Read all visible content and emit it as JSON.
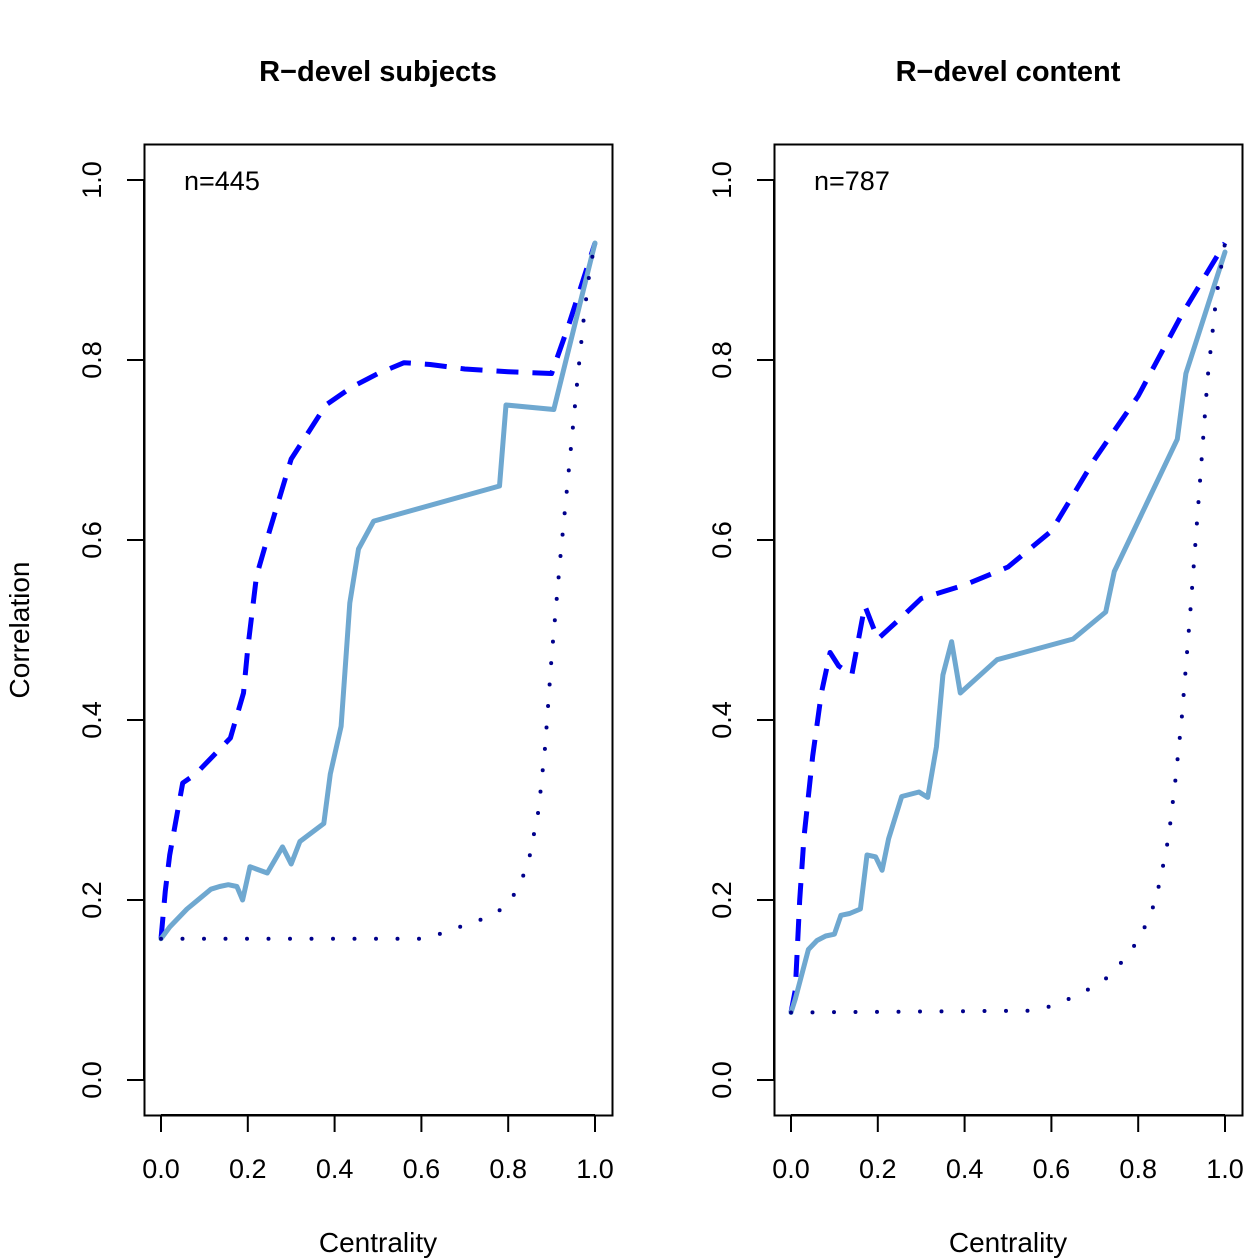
{
  "figure": {
    "ylabel": "Correlation"
  },
  "chart_data": [
    {
      "type": "line",
      "title": "R−devel subjects",
      "xlabel": "Centrality",
      "ylabel": "Correlation",
      "annotation": "n=445",
      "xlim": [
        0,
        1
      ],
      "ylim": [
        0,
        1
      ],
      "xticks": [
        "0.0",
        "0.2",
        "0.4",
        "0.6",
        "0.8",
        "1.0"
      ],
      "yticks": [
        "0.0",
        "0.2",
        "0.4",
        "0.6",
        "0.8",
        "1.0"
      ],
      "grid": false,
      "series": [
        {
          "style": "dashed",
          "color": "#0000ff",
          "x": [
            0.0,
            0.01,
            0.02,
            0.05,
            0.08,
            0.12,
            0.16,
            0.19,
            0.2,
            0.22,
            0.25,
            0.3,
            0.34,
            0.38,
            0.44,
            0.5,
            0.56,
            0.62,
            0.7,
            0.8,
            0.9,
            0.94,
            1.0
          ],
          "y": [
            0.157,
            0.21,
            0.25,
            0.33,
            0.34,
            0.36,
            0.38,
            0.43,
            0.48,
            0.56,
            0.61,
            0.69,
            0.72,
            0.75,
            0.77,
            0.785,
            0.797,
            0.795,
            0.79,
            0.787,
            0.785,
            0.84,
            0.93
          ]
        },
        {
          "style": "solid",
          "color": "#6fa8d0",
          "x": [
            0.0,
            0.02,
            0.06,
            0.08,
            0.115,
            0.135,
            0.155,
            0.175,
            0.188,
            0.205,
            0.245,
            0.28,
            0.3,
            0.32,
            0.375,
            0.39,
            0.415,
            0.435,
            0.455,
            0.49,
            0.78,
            0.795,
            0.905,
            1.0
          ],
          "y": [
            0.157,
            0.17,
            0.19,
            0.198,
            0.212,
            0.215,
            0.217,
            0.215,
            0.2,
            0.237,
            0.23,
            0.259,
            0.24,
            0.265,
            0.285,
            0.34,
            0.393,
            0.53,
            0.59,
            0.621,
            0.66,
            0.75,
            0.745,
            0.93
          ]
        },
        {
          "style": "dotted",
          "color": "#00008b",
          "x": [
            0.0,
            0.6,
            0.64,
            0.7,
            0.76,
            0.8,
            0.83,
            0.85,
            0.87,
            0.885,
            0.9,
            0.92,
            0.94,
            0.96,
            0.975,
            0.988,
            1.0
          ],
          "y": [
            0.157,
            0.157,
            0.162,
            0.172,
            0.182,
            0.195,
            0.22,
            0.25,
            0.3,
            0.37,
            0.47,
            0.58,
            0.68,
            0.78,
            0.85,
            0.9,
            0.93
          ]
        }
      ]
    },
    {
      "type": "line",
      "title": "R−devel content",
      "xlabel": "Centrality",
      "ylabel": "",
      "annotation": "n=787",
      "xlim": [
        0,
        1
      ],
      "ylim": [
        0,
        1
      ],
      "xticks": [
        "0.0",
        "0.2",
        "0.4",
        "0.6",
        "0.8",
        "1.0"
      ],
      "yticks": [
        "0.0",
        "0.2",
        "0.4",
        "0.6",
        "0.8",
        "1.0"
      ],
      "grid": false,
      "series": [
        {
          "style": "dashed",
          "color": "#0000ff",
          "x": [
            0.0,
            0.01,
            0.02,
            0.03,
            0.05,
            0.07,
            0.09,
            0.11,
            0.14,
            0.17,
            0.2,
            0.25,
            0.3,
            0.4,
            0.5,
            0.6,
            0.7,
            0.8,
            0.9,
            1.0
          ],
          "y": [
            0.075,
            0.1,
            0.2,
            0.27,
            0.36,
            0.43,
            0.475,
            0.46,
            0.45,
            0.527,
            0.49,
            0.512,
            0.535,
            0.55,
            0.57,
            0.61,
            0.69,
            0.76,
            0.85,
            0.93
          ]
        },
        {
          "style": "solid",
          "color": "#6fa8d0",
          "x": [
            0.0,
            0.01,
            0.04,
            0.06,
            0.08,
            0.1,
            0.115,
            0.135,
            0.16,
            0.175,
            0.195,
            0.21,
            0.225,
            0.255,
            0.295,
            0.315,
            0.335,
            0.35,
            0.37,
            0.39,
            0.475,
            0.65,
            0.725,
            0.745,
            0.89,
            0.91,
            1.0
          ],
          "y": [
            0.075,
            0.09,
            0.145,
            0.155,
            0.16,
            0.162,
            0.183,
            0.185,
            0.19,
            0.25,
            0.248,
            0.233,
            0.268,
            0.315,
            0.32,
            0.314,
            0.37,
            0.45,
            0.487,
            0.43,
            0.467,
            0.49,
            0.52,
            0.565,
            0.712,
            0.785,
            0.92
          ]
        },
        {
          "style": "dotted",
          "color": "#00008b",
          "x": [
            0.0,
            0.55,
            0.6,
            0.66,
            0.72,
            0.76,
            0.8,
            0.83,
            0.85,
            0.87,
            0.885,
            0.9,
            0.92,
            0.94,
            0.96,
            0.98,
            1.0
          ],
          "y": [
            0.075,
            0.077,
            0.082,
            0.094,
            0.11,
            0.13,
            0.155,
            0.185,
            0.22,
            0.27,
            0.33,
            0.4,
            0.52,
            0.65,
            0.78,
            0.87,
            0.93
          ]
        }
      ]
    }
  ]
}
